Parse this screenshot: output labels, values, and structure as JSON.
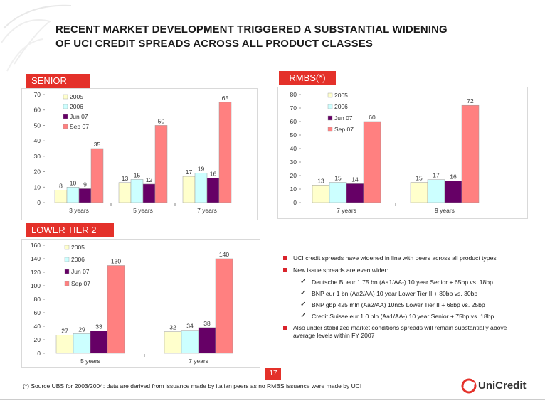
{
  "title_line1": "RECENT MARKET DEVELOPMENT TRIGGERED A SUBSTANTIAL WIDENING",
  "title_line2": "OF UCI CREDIT SPREADS ACROSS ALL PRODUCT CLASSES",
  "colors": {
    "red": "#e4312a",
    "s2005": "#ffffcc",
    "s2006": "#ccffff",
    "jun07": "#660066",
    "sep07": "#ff8080"
  },
  "chart_data": [
    {
      "type": "bar",
      "title": "SENIOR",
      "categories": [
        "3 years",
        "5 years",
        "7 years"
      ],
      "series": [
        {
          "name": "2005",
          "values": [
            8,
            13,
            17
          ]
        },
        {
          "name": "2006",
          "values": [
            10,
            15,
            19
          ]
        },
        {
          "name": "Jun 07",
          "values": [
            9,
            12,
            16
          ]
        },
        {
          "name": "Sep 07",
          "values": [
            35,
            50,
            65
          ]
        }
      ],
      "ylim": [
        0,
        70
      ],
      "yticks": [
        0,
        10,
        20,
        30,
        40,
        50,
        60,
        70
      ]
    },
    {
      "type": "bar",
      "title": "RMBS(*)",
      "categories": [
        "7 years",
        "9 years"
      ],
      "series": [
        {
          "name": "2005",
          "values": [
            13,
            15
          ]
        },
        {
          "name": "2006",
          "values": [
            15,
            17
          ]
        },
        {
          "name": "Jun 07",
          "values": [
            14,
            16
          ]
        },
        {
          "name": "Sep 07",
          "values": [
            60,
            72
          ]
        }
      ],
      "ylim": [
        0,
        80
      ],
      "yticks": [
        0,
        10,
        20,
        30,
        40,
        50,
        60,
        70,
        80
      ]
    },
    {
      "type": "bar",
      "title": "LOWER TIER 2",
      "categories": [
        "5 years",
        "7 years"
      ],
      "series": [
        {
          "name": "2005",
          "values": [
            27,
            32
          ]
        },
        {
          "name": "2006",
          "values": [
            29,
            34
          ]
        },
        {
          "name": "Jun 07",
          "values": [
            33,
            38
          ]
        },
        {
          "name": "Sep 07",
          "values": [
            130,
            140
          ]
        }
      ],
      "ylim": [
        0,
        160
      ],
      "yticks": [
        0,
        20,
        40,
        60,
        80,
        100,
        120,
        140,
        160
      ]
    }
  ],
  "bullets": [
    {
      "text": "UCI credit spreads have widened in line with peers  across all product types",
      "subs": []
    },
    {
      "text": "New issue spreads are even wider:",
      "subs": [
        "Deutsche B. eur 1.75 bn (Aa1/AA-) 10 year Senior + 65bp vs. 18bp",
        "BNP eur 1 bn (Aa2/AA) 10 year Lower Tier II + 80bp vs. 30bp",
        "BNP gbp 425 mln (Aa2/AA) 10nc5 Lower Tier II + 68bp vs. 25bp",
        "Credit Suisse eur 1.0 bln (Aa1/AA-) 10 year Senior + 75bp vs. 18bp"
      ]
    },
    {
      "text": "Also under stabilized market conditions spreads will remain substantially above average levels within FY 2007",
      "subs": []
    }
  ],
  "check_mark": "✓",
  "page_number": "17",
  "footnote": "(*) Source UBS for 2003/2004: data are derived from issuance made by italian peers as no RMBS issuance were made by UCI",
  "logo_text": "UniCredit"
}
